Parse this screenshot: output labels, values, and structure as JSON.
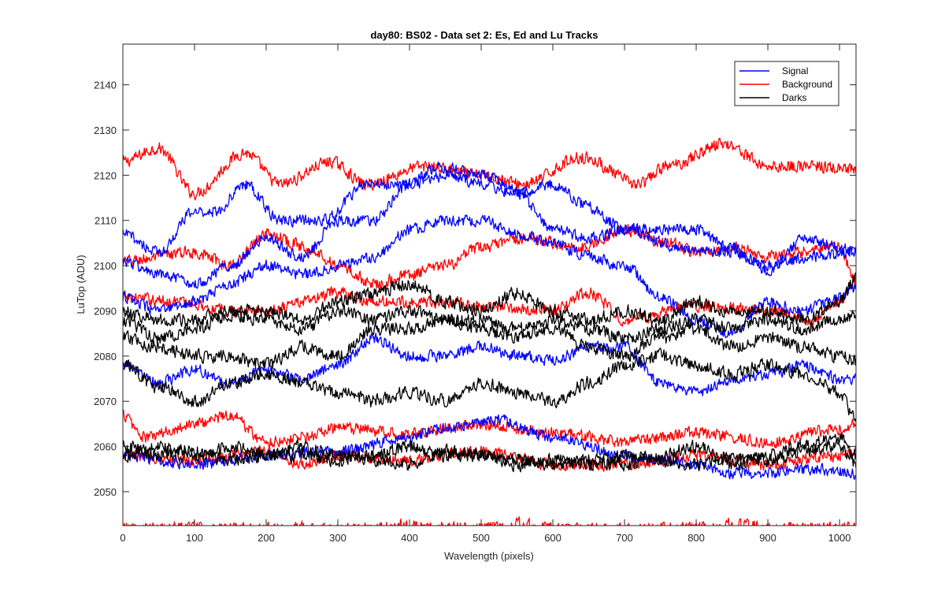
{
  "chart_data": {
    "type": "line",
    "title": "day80: BS02 - Data set 2: Es, Ed and Lu Tracks",
    "xlabel": "Wavelength (pixels)",
    "ylabel": "LuTop (ADU)",
    "xlim": [
      0,
      1023
    ],
    "ylim": [
      2042.5,
      2149
    ],
    "xticks": [
      0,
      100,
      200,
      300,
      400,
      500,
      600,
      700,
      800,
      900,
      1000
    ],
    "yticks": [
      2050,
      2060,
      2070,
      2080,
      2090,
      2100,
      2110,
      2120,
      2130,
      2140
    ],
    "grid": false,
    "legend_position": "top-right",
    "legend": [
      {
        "label": "Signal",
        "color": "#0000ff"
      },
      {
        "label": "Background",
        "color": "#ff0000"
      },
      {
        "label": "Darks",
        "color": "#000000"
      }
    ],
    "noise_amplitude": {
      "Signal": 1.3,
      "Background": 1.4,
      "Darks": 1.5
    },
    "series": [
      {
        "group": "Background",
        "color": "#ff0000",
        "x": [
          0,
          50,
          100,
          170,
          220,
          290,
          340,
          420,
          500,
          560,
          640,
          720,
          760,
          840,
          900,
          960,
          1023
        ],
        "values": [
          2123,
          2126,
          2116,
          2125,
          2118,
          2123,
          2118,
          2122,
          2120,
          2118,
          2124,
          2118,
          2122,
          2127,
          2122,
          2122,
          2121
        ]
      },
      {
        "group": "Background",
        "color": "#ff0000",
        "x": [
          0,
          100,
          150,
          200,
          260,
          300,
          350,
          400,
          450,
          500,
          560,
          640,
          700,
          760,
          800,
          850,
          900,
          1000,
          1023
        ],
        "values": [
          2101,
          2103,
          2100,
          2107,
          2104,
          2100,
          2096,
          2098,
          2100,
          2104,
          2106,
          2104,
          2108,
          2105,
          2103,
          2104,
          2102,
          2104,
          2096
        ]
      },
      {
        "group": "Background",
        "color": "#ff0000",
        "x": [
          0,
          80,
          150,
          200,
          250,
          300,
          350,
          400,
          450,
          500,
          600,
          650,
          700,
          800,
          900,
          960,
          1000,
          1023
        ],
        "values": [
          2093,
          2092,
          2090,
          2090,
          2092,
          2094,
          2092,
          2092,
          2092,
          2091,
          2090,
          2094,
          2088,
          2091,
          2090,
          2088,
          2092,
          2097
        ]
      },
      {
        "group": "Background",
        "color": "#ff0000",
        "x": [
          0,
          30,
          100,
          150,
          200,
          250,
          300,
          400,
          500,
          600,
          700,
          800,
          900,
          1000,
          1023
        ],
        "values": [
          2067,
          2062,
          2065,
          2067,
          2061,
          2062,
          2064,
          2063,
          2065,
          2063,
          2061,
          2063,
          2061,
          2064,
          2065
        ]
      },
      {
        "group": "Background",
        "color": "#ff0000",
        "x": [
          0,
          100,
          200,
          250,
          300,
          400,
          500,
          600,
          700,
          800,
          900,
          1000,
          1023
        ],
        "values": [
          2058,
          2057,
          2059,
          2056,
          2058,
          2057,
          2059,
          2056,
          2056,
          2058,
          2056,
          2058,
          2059
        ]
      },
      {
        "group": "Signal",
        "color": "#0000ff",
        "x": [
          0,
          50,
          100,
          130,
          170,
          220,
          280,
          340,
          400,
          440,
          500,
          560,
          600,
          650,
          700,
          780,
          850,
          900,
          960,
          1023
        ],
        "values": [
          2107,
          2103,
          2112,
          2112,
          2118,
          2110,
          2110,
          2118,
          2118,
          2122,
          2120,
          2116,
          2118,
          2113,
          2108,
          2104,
          2103,
          2100,
          2102,
          2103
        ]
      },
      {
        "group": "Signal",
        "color": "#0000ff",
        "x": [
          0,
          50,
          100,
          150,
          200,
          250,
          300,
          350,
          400,
          450,
          500,
          550,
          600,
          650,
          700,
          750,
          800,
          850,
          900,
          950,
          1000,
          1023
        ],
        "values": [
          2101,
          2098,
          2096,
          2100,
          2106,
          2102,
          2110,
          2110,
          2118,
          2120,
          2118,
          2116,
          2108,
          2106,
          2108,
          2108,
          2108,
          2104,
          2099,
          2106,
          2104,
          2103
        ]
      },
      {
        "group": "Signal",
        "color": "#0000ff",
        "x": [
          0,
          50,
          100,
          150,
          200,
          250,
          300,
          350,
          400,
          450,
          500,
          550,
          600,
          650,
          700,
          750,
          800,
          850,
          900,
          950,
          1000,
          1023
        ],
        "values": [
          2093,
          2090,
          2092,
          2096,
          2100,
          2098,
          2100,
          2102,
          2108,
          2110,
          2110,
          2107,
          2105,
          2102,
          2100,
          2093,
          2088,
          2085,
          2092,
          2090,
          2093,
          2095
        ]
      },
      {
        "group": "Signal",
        "color": "#0000ff",
        "x": [
          0,
          50,
          100,
          150,
          200,
          250,
          300,
          350,
          400,
          450,
          500,
          550,
          600,
          650,
          700,
          750,
          800,
          850,
          900,
          950,
          1000,
          1023
        ],
        "values": [
          2078,
          2074,
          2077,
          2074,
          2077,
          2075,
          2078,
          2084,
          2080,
          2080,
          2082,
          2080,
          2079,
          2082,
          2082,
          2074,
          2072,
          2075,
          2076,
          2078,
          2075,
          2075
        ]
      },
      {
        "group": "Signal",
        "color": "#0000ff",
        "x": [
          0,
          100,
          200,
          300,
          400,
          450,
          520,
          600,
          700,
          800,
          850,
          900,
          960,
          1023
        ],
        "values": [
          2058,
          2056,
          2058,
          2059,
          2062,
          2064,
          2066,
          2062,
          2058,
          2056,
          2054,
          2054,
          2055,
          2054
        ]
      },
      {
        "group": "Darks",
        "color": "#000000",
        "x": [
          0,
          50,
          100,
          150,
          200,
          250,
          300,
          350,
          400,
          450,
          500,
          550,
          600,
          650,
          700,
          750,
          800,
          850,
          900,
          950,
          1000,
          1023
        ],
        "values": [
          2090,
          2088,
          2088,
          2090,
          2090,
          2088,
          2092,
          2094,
          2096,
          2092,
          2090,
          2094,
          2090,
          2088,
          2090,
          2088,
          2092,
          2090,
          2090,
          2088,
          2092,
          2097
        ]
      },
      {
        "group": "Darks",
        "color": "#000000",
        "x": [
          0,
          50,
          100,
          150,
          200,
          250,
          300,
          350,
          400,
          450,
          500,
          550,
          600,
          650,
          700,
          750,
          800,
          850,
          900,
          950,
          1000,
          1023
        ],
        "values": [
          2088,
          2084,
          2086,
          2089,
          2088,
          2086,
          2090,
          2088,
          2090,
          2088,
          2088,
          2086,
          2088,
          2086,
          2084,
          2086,
          2088,
          2086,
          2088,
          2086,
          2088,
          2089
        ]
      },
      {
        "group": "Darks",
        "color": "#000000",
        "x": [
          0,
          50,
          100,
          150,
          200,
          250,
          300,
          350,
          400,
          450,
          500,
          550,
          600,
          650,
          700,
          750,
          800,
          850,
          900,
          950,
          1000,
          1023
        ],
        "values": [
          2084,
          2082,
          2080,
          2080,
          2078,
          2082,
          2080,
          2086,
          2086,
          2088,
          2086,
          2084,
          2086,
          2082,
          2080,
          2084,
          2086,
          2082,
          2084,
          2082,
          2080,
          2079
        ]
      },
      {
        "group": "Darks",
        "color": "#000000",
        "x": [
          0,
          50,
          100,
          150,
          200,
          250,
          300,
          350,
          400,
          450,
          500,
          550,
          600,
          650,
          700,
          750,
          800,
          850,
          900,
          950,
          1000,
          1023
        ],
        "values": [
          2078,
          2073,
          2070,
          2074,
          2076,
          2074,
          2072,
          2070,
          2072,
          2070,
          2074,
          2072,
          2070,
          2074,
          2078,
          2080,
          2078,
          2076,
          2078,
          2076,
          2072,
          2066
        ]
      },
      {
        "group": "Darks",
        "color": "#000000",
        "x": [
          0,
          50,
          100,
          150,
          200,
          250,
          300,
          350,
          400,
          450,
          500,
          550,
          600,
          650,
          700,
          750,
          800,
          850,
          900,
          950,
          1000,
          1023
        ],
        "values": [
          2060,
          2058,
          2058,
          2060,
          2058,
          2058,
          2057,
          2058,
          2060,
          2058,
          2058,
          2057,
          2056,
          2057,
          2056,
          2058,
          2060,
          2056,
          2058,
          2060,
          2062,
          2058
        ]
      },
      {
        "group": "Darks",
        "color": "#000000",
        "x": [
          0,
          50,
          100,
          150,
          200,
          250,
          300,
          350,
          400,
          450,
          500,
          550,
          600,
          650,
          700,
          750,
          800,
          850,
          900,
          950,
          1000,
          1023
        ],
        "values": [
          2058,
          2060,
          2059,
          2057,
          2058,
          2060,
          2058,
          2057,
          2056,
          2059,
          2058,
          2056,
          2057,
          2056,
          2058,
          2057,
          2056,
          2058,
          2057,
          2059,
          2060,
          2056
        ]
      }
    ],
    "clipped_series": {
      "group": "Background",
      "color": "#ff0000",
      "value": 2042,
      "noise_amplitude": 1.2
    }
  }
}
